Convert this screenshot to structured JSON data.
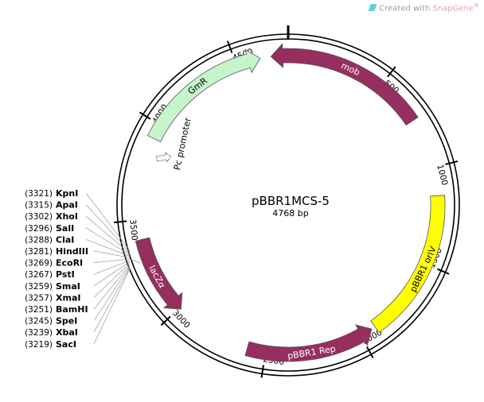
{
  "watermark": {
    "prefix": "Created with ",
    "brand": "SnapGene",
    "mark": "®"
  },
  "plasmid": {
    "name": "pBBR1MCS-5",
    "length_label": "4768 bp",
    "length_bp": 4768
  },
  "ticks": [
    {
      "bp": 500,
      "label": "500"
    },
    {
      "bp": 1000,
      "label": "1000"
    },
    {
      "bp": 1500,
      "label": "1500"
    },
    {
      "bp": 2000,
      "label": "2000"
    },
    {
      "bp": 2500,
      "label": "2500"
    },
    {
      "bp": 3000,
      "label": "3000"
    },
    {
      "bp": 3500,
      "label": "3500"
    },
    {
      "bp": 4000,
      "label": "4000"
    },
    {
      "bp": 4500,
      "label": "4500"
    }
  ],
  "features": [
    {
      "id": "mob",
      "label": "mob",
      "start": 4680,
      "end": 740,
      "dir": "reverse",
      "color": "#962e5f",
      "label_light": true
    },
    {
      "id": "oriv",
      "label": "pBBR1 oriV",
      "start": 1145,
      "end": 1915,
      "dir": "none",
      "color": "#ffff00",
      "label_light": false
    },
    {
      "id": "rep",
      "label": "pBBR1 Rep",
      "start": 1935,
      "end": 2595,
      "dir": "reverse",
      "color": "#962e5f",
      "label_light": true
    },
    {
      "id": "lacz",
      "label": "lacZα",
      "start": 2990,
      "end": 3400,
      "dir": "reverse",
      "color": "#962e5f",
      "label_light": true
    },
    {
      "id": "gmr",
      "label": "GmR",
      "start": 3925,
      "end": 4625,
      "dir": "forward",
      "color": "#c6f5cb",
      "label_light": false
    }
  ],
  "promoter": {
    "label": "Pc promoter"
  },
  "sites": [
    {
      "pos": "(3321)",
      "name": "KpnI"
    },
    {
      "pos": "(3315)",
      "name": "ApaI"
    },
    {
      "pos": "(3302)",
      "name": "XhoI"
    },
    {
      "pos": "(3296)",
      "name": "SalI"
    },
    {
      "pos": "(3288)",
      "name": "ClaI"
    },
    {
      "pos": "(3281)",
      "name": "HindIII"
    },
    {
      "pos": "(3269)",
      "name": "EcoRI"
    },
    {
      "pos": "(3267)",
      "name": "PstI"
    },
    {
      "pos": "(3259)",
      "name": "SmaI"
    },
    {
      "pos": "(3257)",
      "name": "XmaI"
    },
    {
      "pos": "(3251)",
      "name": "BamHI"
    },
    {
      "pos": "(3245)",
      "name": "SpeI"
    },
    {
      "pos": "(3239)",
      "name": "XbaI"
    },
    {
      "pos": "(3219)",
      "name": "SacI"
    }
  ]
}
